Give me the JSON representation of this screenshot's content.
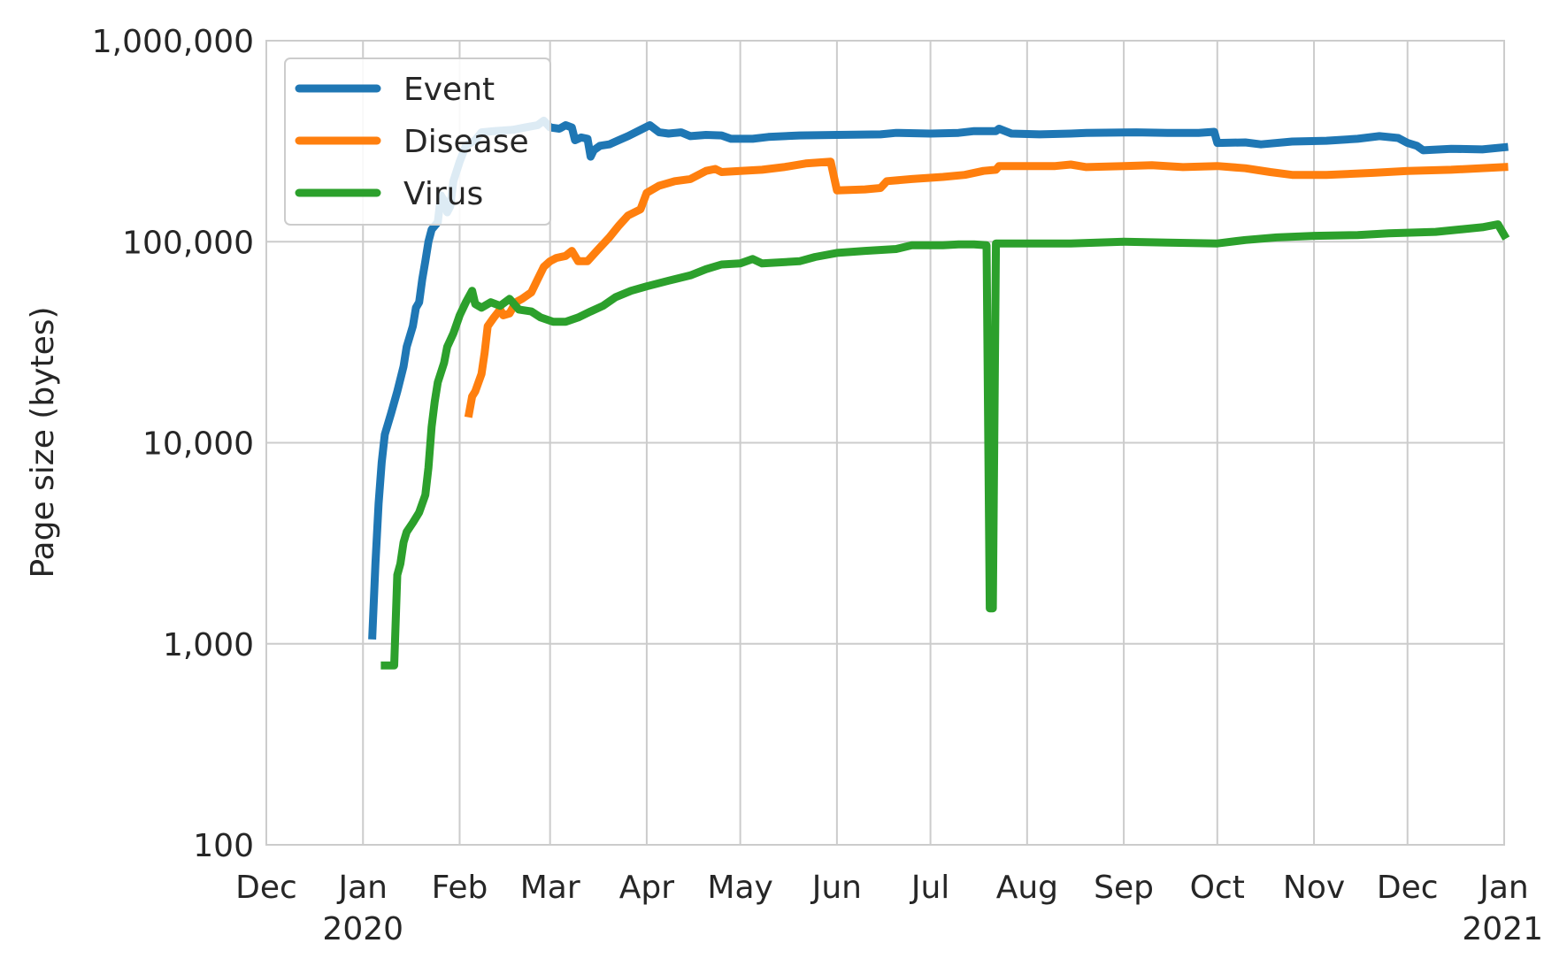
{
  "chart_data": {
    "type": "line",
    "title": "",
    "xlabel": "",
    "ylabel": "Page size (bytes)",
    "yscale": "log",
    "ylim": [
      100,
      1000000
    ],
    "xlim": [
      "2019-12-01",
      "2021-01-01"
    ],
    "grid": true,
    "legend_position": "top-left",
    "y_ticks": [
      {
        "value": 100,
        "label": "100"
      },
      {
        "value": 1000,
        "label": "1,000"
      },
      {
        "value": 10000,
        "label": "10,000"
      },
      {
        "value": 100000,
        "label": "100,000"
      },
      {
        "value": 1000000,
        "label": "1,000,000"
      }
    ],
    "x_ticks": [
      {
        "date": "2019-12-01",
        "label": "Dec",
        "sublabel": ""
      },
      {
        "date": "2020-01-01",
        "label": "Jan",
        "sublabel": "2020"
      },
      {
        "date": "2020-02-01",
        "label": "Feb",
        "sublabel": ""
      },
      {
        "date": "2020-03-01",
        "label": "Mar",
        "sublabel": ""
      },
      {
        "date": "2020-04-01",
        "label": "Apr",
        "sublabel": ""
      },
      {
        "date": "2020-05-01",
        "label": "May",
        "sublabel": ""
      },
      {
        "date": "2020-06-01",
        "label": "Jun",
        "sublabel": ""
      },
      {
        "date": "2020-07-01",
        "label": "Jul",
        "sublabel": ""
      },
      {
        "date": "2020-08-01",
        "label": "Aug",
        "sublabel": ""
      },
      {
        "date": "2020-09-01",
        "label": "Sep",
        "sublabel": ""
      },
      {
        "date": "2020-10-01",
        "label": "Oct",
        "sublabel": ""
      },
      {
        "date": "2020-11-01",
        "label": "Nov",
        "sublabel": ""
      },
      {
        "date": "2020-12-01",
        "label": "Dec",
        "sublabel": ""
      },
      {
        "date": "2021-01-01",
        "label": "Jan",
        "sublabel": "2021"
      }
    ],
    "series": [
      {
        "name": "Event",
        "color": "#1f77b4",
        "points": [
          [
            "2020-01-04",
            1100
          ],
          [
            "2020-01-05",
            2500
          ],
          [
            "2020-01-06",
            5000
          ],
          [
            "2020-01-07",
            8000
          ],
          [
            "2020-01-08",
            11000
          ],
          [
            "2020-01-10",
            14000
          ],
          [
            "2020-01-12",
            18000
          ],
          [
            "2020-01-14",
            24000
          ],
          [
            "2020-01-15",
            30000
          ],
          [
            "2020-01-17",
            38000
          ],
          [
            "2020-01-18",
            47000
          ],
          [
            "2020-01-19",
            50000
          ],
          [
            "2020-01-20",
            65000
          ],
          [
            "2020-01-21",
            80000
          ],
          [
            "2020-01-22",
            100000
          ],
          [
            "2020-01-23",
            115000
          ],
          [
            "2020-01-25",
            125000
          ],
          [
            "2020-01-26",
            170000
          ],
          [
            "2020-01-27",
            160000
          ],
          [
            "2020-01-28",
            140000
          ],
          [
            "2020-01-29",
            150000
          ],
          [
            "2020-01-30",
            200000
          ],
          [
            "2020-02-01",
            250000
          ],
          [
            "2020-02-03",
            300000
          ],
          [
            "2020-02-06",
            320000
          ],
          [
            "2020-02-08",
            350000
          ],
          [
            "2020-02-12",
            355000
          ],
          [
            "2020-02-18",
            360000
          ],
          [
            "2020-02-22",
            370000
          ],
          [
            "2020-02-26",
            380000
          ],
          [
            "2020-02-28",
            400000
          ],
          [
            "2020-03-01",
            370000
          ],
          [
            "2020-03-04",
            365000
          ],
          [
            "2020-03-06",
            380000
          ],
          [
            "2020-03-08",
            370000
          ],
          [
            "2020-03-09",
            320000
          ],
          [
            "2020-03-11",
            330000
          ],
          [
            "2020-03-13",
            325000
          ],
          [
            "2020-03-14",
            265000
          ],
          [
            "2020-03-15",
            285000
          ],
          [
            "2020-03-17",
            300000
          ],
          [
            "2020-03-20",
            305000
          ],
          [
            "2020-03-23",
            320000
          ],
          [
            "2020-03-26",
            335000
          ],
          [
            "2020-03-30",
            360000
          ],
          [
            "2020-04-02",
            380000
          ],
          [
            "2020-04-05",
            350000
          ],
          [
            "2020-04-08",
            345000
          ],
          [
            "2020-04-12",
            350000
          ],
          [
            "2020-04-15",
            335000
          ],
          [
            "2020-04-20",
            340000
          ],
          [
            "2020-04-25",
            338000
          ],
          [
            "2020-04-28",
            325000
          ],
          [
            "2020-05-05",
            325000
          ],
          [
            "2020-05-10",
            332000
          ],
          [
            "2020-05-20",
            338000
          ],
          [
            "2020-06-01",
            340000
          ],
          [
            "2020-06-15",
            342000
          ],
          [
            "2020-06-20",
            348000
          ],
          [
            "2020-07-01",
            345000
          ],
          [
            "2020-07-10",
            348000
          ],
          [
            "2020-07-15",
            355000
          ],
          [
            "2020-07-22",
            355000
          ],
          [
            "2020-07-23",
            365000
          ],
          [
            "2020-07-27",
            345000
          ],
          [
            "2020-08-05",
            342000
          ],
          [
            "2020-08-15",
            345000
          ],
          [
            "2020-08-20",
            348000
          ],
          [
            "2020-09-05",
            350000
          ],
          [
            "2020-09-15",
            348000
          ],
          [
            "2020-09-25",
            348000
          ],
          [
            "2020-09-30",
            352000
          ],
          [
            "2020-10-01",
            310000
          ],
          [
            "2020-10-10",
            312000
          ],
          [
            "2020-10-15",
            305000
          ],
          [
            "2020-10-25",
            315000
          ],
          [
            "2020-11-05",
            318000
          ],
          [
            "2020-11-15",
            325000
          ],
          [
            "2020-11-22",
            335000
          ],
          [
            "2020-11-28",
            328000
          ],
          [
            "2020-12-01",
            310000
          ],
          [
            "2020-12-04",
            300000
          ],
          [
            "2020-12-06",
            285000
          ],
          [
            "2020-12-15",
            290000
          ],
          [
            "2020-12-25",
            288000
          ],
          [
            "2021-01-01",
            295000
          ]
        ]
      },
      {
        "name": "Disease",
        "color": "#ff7f0e",
        "points": [
          [
            "2020-02-04",
            14000
          ],
          [
            "2020-02-05",
            17000
          ],
          [
            "2020-02-06",
            18000
          ],
          [
            "2020-02-08",
            22000
          ],
          [
            "2020-02-09",
            28000
          ],
          [
            "2020-02-10",
            38000
          ],
          [
            "2020-02-12",
            42000
          ],
          [
            "2020-02-14",
            46000
          ],
          [
            "2020-02-15",
            43000
          ],
          [
            "2020-02-17",
            44000
          ],
          [
            "2020-02-19",
            50000
          ],
          [
            "2020-02-21",
            52000
          ],
          [
            "2020-02-24",
            56000
          ],
          [
            "2020-02-26",
            65000
          ],
          [
            "2020-02-28",
            75000
          ],
          [
            "2020-03-01",
            80000
          ],
          [
            "2020-03-03",
            83000
          ],
          [
            "2020-03-06",
            85000
          ],
          [
            "2020-03-08",
            90000
          ],
          [
            "2020-03-10",
            80000
          ],
          [
            "2020-03-13",
            80000
          ],
          [
            "2020-03-16",
            90000
          ],
          [
            "2020-03-20",
            105000
          ],
          [
            "2020-03-23",
            120000
          ],
          [
            "2020-03-26",
            135000
          ],
          [
            "2020-03-30",
            145000
          ],
          [
            "2020-04-01",
            175000
          ],
          [
            "2020-04-05",
            190000
          ],
          [
            "2020-04-10",
            200000
          ],
          [
            "2020-04-15",
            205000
          ],
          [
            "2020-04-20",
            225000
          ],
          [
            "2020-04-23",
            230000
          ],
          [
            "2020-04-25",
            222000
          ],
          [
            "2020-05-01",
            225000
          ],
          [
            "2020-05-08",
            228000
          ],
          [
            "2020-05-15",
            235000
          ],
          [
            "2020-05-22",
            245000
          ],
          [
            "2020-05-30",
            250000
          ],
          [
            "2020-06-01",
            180000
          ],
          [
            "2020-06-10",
            182000
          ],
          [
            "2020-06-15",
            185000
          ],
          [
            "2020-06-17",
            200000
          ],
          [
            "2020-06-25",
            205000
          ],
          [
            "2020-07-05",
            210000
          ],
          [
            "2020-07-12",
            215000
          ],
          [
            "2020-07-18",
            225000
          ],
          [
            "2020-07-22",
            228000
          ],
          [
            "2020-07-23",
            238000
          ],
          [
            "2020-08-10",
            238000
          ],
          [
            "2020-08-15",
            242000
          ],
          [
            "2020-08-20",
            235000
          ],
          [
            "2020-09-01",
            238000
          ],
          [
            "2020-09-10",
            240000
          ],
          [
            "2020-09-20",
            235000
          ],
          [
            "2020-10-01",
            238000
          ],
          [
            "2020-10-10",
            232000
          ],
          [
            "2020-10-18",
            222000
          ],
          [
            "2020-10-25",
            215000
          ],
          [
            "2020-11-05",
            215000
          ],
          [
            "2020-11-20",
            220000
          ],
          [
            "2020-12-01",
            225000
          ],
          [
            "2020-12-15",
            228000
          ],
          [
            "2021-01-01",
            235000
          ]
        ]
      },
      {
        "name": "Virus",
        "color": "#2ca02c",
        "points": [
          [
            "2020-01-08",
            780
          ],
          [
            "2020-01-11",
            780
          ],
          [
            "2020-01-12",
            2200
          ],
          [
            "2020-01-13",
            2500
          ],
          [
            "2020-01-14",
            3200
          ],
          [
            "2020-01-15",
            3600
          ],
          [
            "2020-01-17",
            4000
          ],
          [
            "2020-01-19",
            4500
          ],
          [
            "2020-01-21",
            5500
          ],
          [
            "2020-01-22",
            7500
          ],
          [
            "2020-01-23",
            12000
          ],
          [
            "2020-01-24",
            16000
          ],
          [
            "2020-01-25",
            20000
          ],
          [
            "2020-01-27",
            25000
          ],
          [
            "2020-01-28",
            30000
          ],
          [
            "2020-01-30",
            35000
          ],
          [
            "2020-02-01",
            43000
          ],
          [
            "2020-02-03",
            50000
          ],
          [
            "2020-02-05",
            57000
          ],
          [
            "2020-02-06",
            49000
          ],
          [
            "2020-02-08",
            47000
          ],
          [
            "2020-02-11",
            50000
          ],
          [
            "2020-02-14",
            48000
          ],
          [
            "2020-02-17",
            52000
          ],
          [
            "2020-02-20",
            46000
          ],
          [
            "2020-02-24",
            45000
          ],
          [
            "2020-02-27",
            42000
          ],
          [
            "2020-03-02",
            40000
          ],
          [
            "2020-03-06",
            40000
          ],
          [
            "2020-03-10",
            42000
          ],
          [
            "2020-03-14",
            45000
          ],
          [
            "2020-03-18",
            48000
          ],
          [
            "2020-03-22",
            53000
          ],
          [
            "2020-03-27",
            57000
          ],
          [
            "2020-04-01",
            60000
          ],
          [
            "2020-04-08",
            64000
          ],
          [
            "2020-04-15",
            68000
          ],
          [
            "2020-04-20",
            73000
          ],
          [
            "2020-04-25",
            77000
          ],
          [
            "2020-05-01",
            78000
          ],
          [
            "2020-05-05",
            82000
          ],
          [
            "2020-05-08",
            78000
          ],
          [
            "2020-05-20",
            80000
          ],
          [
            "2020-05-25",
            84000
          ],
          [
            "2020-06-01",
            88000
          ],
          [
            "2020-06-10",
            90000
          ],
          [
            "2020-06-20",
            92000
          ],
          [
            "2020-06-25",
            96000
          ],
          [
            "2020-07-05",
            96000
          ],
          [
            "2020-07-10",
            97000
          ],
          [
            "2020-07-15",
            97000
          ],
          [
            "2020-07-19",
            96000
          ],
          [
            "2020-07-20",
            1500
          ],
          [
            "2020-07-21",
            1500
          ],
          [
            "2020-07-22",
            98000
          ],
          [
            "2020-08-01",
            98000
          ],
          [
            "2020-08-15",
            98000
          ],
          [
            "2020-09-01",
            100000
          ],
          [
            "2020-09-15",
            99000
          ],
          [
            "2020-10-01",
            98000
          ],
          [
            "2020-10-10",
            102000
          ],
          [
            "2020-10-20",
            105000
          ],
          [
            "2020-11-01",
            107000
          ],
          [
            "2020-11-15",
            108000
          ],
          [
            "2020-11-25",
            110000
          ],
          [
            "2020-12-10",
            112000
          ],
          [
            "2020-12-25",
            118000
          ],
          [
            "2020-12-30",
            122000
          ],
          [
            "2021-01-01",
            108000
          ]
        ]
      }
    ]
  }
}
